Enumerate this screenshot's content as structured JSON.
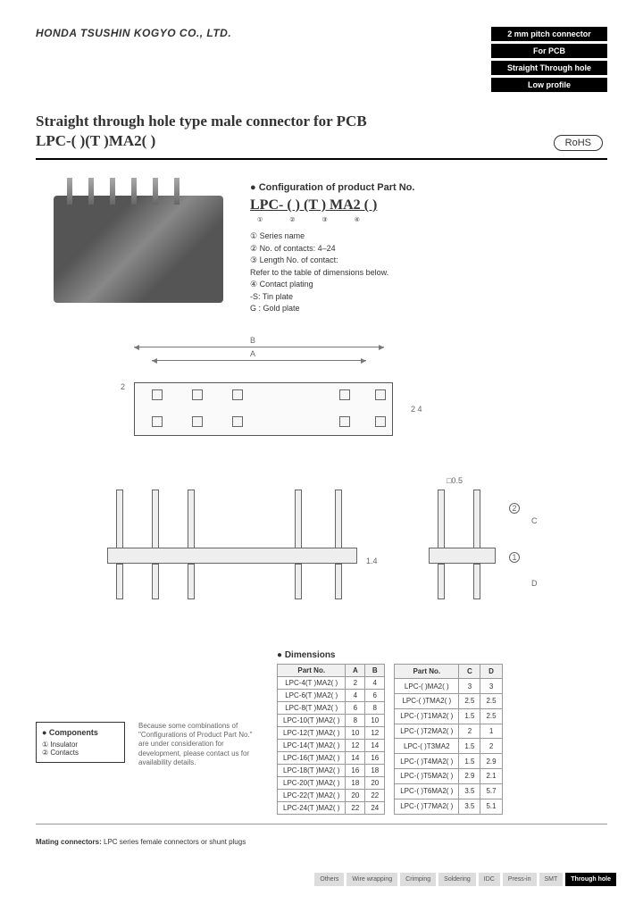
{
  "company": "HONDA TSUSHIN KOGYO CO., LTD.",
  "badges": [
    "2 mm pitch connector",
    "For PCB",
    "Straight Through hole",
    "Low profile"
  ],
  "title_line1": "Straight through hole type male connector for PCB",
  "title_line2": "LPC-( )(T )MA2( )",
  "rohs": "RoHS",
  "config": {
    "title": "● Configuration of product Part No.",
    "partno": "LPC- ( ) (T ) MA2 ( )",
    "subs": "① ② ③ ④",
    "items": [
      "① Series name",
      "② No. of contacts: 4–24",
      "③ Length No. of contact:",
      "   Refer to the table of dimensions below.",
      "④ Contact plating",
      "   -S: Tin plate",
      "   G : Gold plate"
    ]
  },
  "diagram": {
    "A": "A",
    "B": "B",
    "C": "C",
    "D": "D",
    "pitch": "2",
    "span": "2  4",
    "sq": "□0.5",
    "h": "1.4"
  },
  "dimensions_title": "● Dimensions",
  "table1": {
    "headers": [
      "Part No.",
      "A",
      "B"
    ],
    "rows": [
      [
        "LPC-4(T )MA2( )",
        "2",
        "4"
      ],
      [
        "LPC-6(T )MA2( )",
        "4",
        "6"
      ],
      [
        "LPC-8(T )MA2( )",
        "6",
        "8"
      ],
      [
        "LPC-10(T )MA2( )",
        "8",
        "10"
      ],
      [
        "LPC-12(T )MA2( )",
        "10",
        "12"
      ],
      [
        "LPC-14(T )MA2( )",
        "12",
        "14"
      ],
      [
        "LPC-16(T )MA2( )",
        "14",
        "16"
      ],
      [
        "LPC-18(T )MA2( )",
        "16",
        "18"
      ],
      [
        "LPC-20(T )MA2( )",
        "18",
        "20"
      ],
      [
        "LPC-22(T )MA2( )",
        "20",
        "22"
      ],
      [
        "LPC-24(T )MA2( )",
        "22",
        "24"
      ]
    ]
  },
  "table2": {
    "headers": [
      "Part No.",
      "C",
      "D"
    ],
    "rows": [
      [
        "LPC-( )MA2( )",
        "3",
        "3"
      ],
      [
        "LPC-( )TMA2( )",
        "2.5",
        "2.5"
      ],
      [
        "LPC-( )T1MA2( )",
        "1.5",
        "2.5"
      ],
      [
        "LPC-( )T2MA2( )",
        "2",
        "1"
      ],
      [
        "LPC-( )T3MA2",
        "1.5",
        "2"
      ],
      [
        "LPC-( )T4MA2( )",
        "1.5",
        "2.9"
      ],
      [
        "LPC-( )T5MA2( )",
        "2.9",
        "2.1"
      ],
      [
        "LPC-( )T6MA2( )",
        "3.5",
        "5.7"
      ],
      [
        "LPC-( )T7MA2( )",
        "3.5",
        "5.1"
      ]
    ]
  },
  "components": {
    "title": "● Components",
    "items": [
      "① Insulator",
      "② Contacts"
    ]
  },
  "note": "Because some combinations of \"Configurations of Product Part No.\" are under consideration for development, please contact us for availability details.",
  "mating_label": "Mating connectors:",
  "mating_text": "LPC series female connectors or shunt plugs",
  "footer_tags": [
    "Others",
    "Wire wrapping",
    "Crimping",
    "Soldering",
    "IDC",
    "Press-in",
    "SMT",
    "Through hole"
  ],
  "footer_active": 7
}
